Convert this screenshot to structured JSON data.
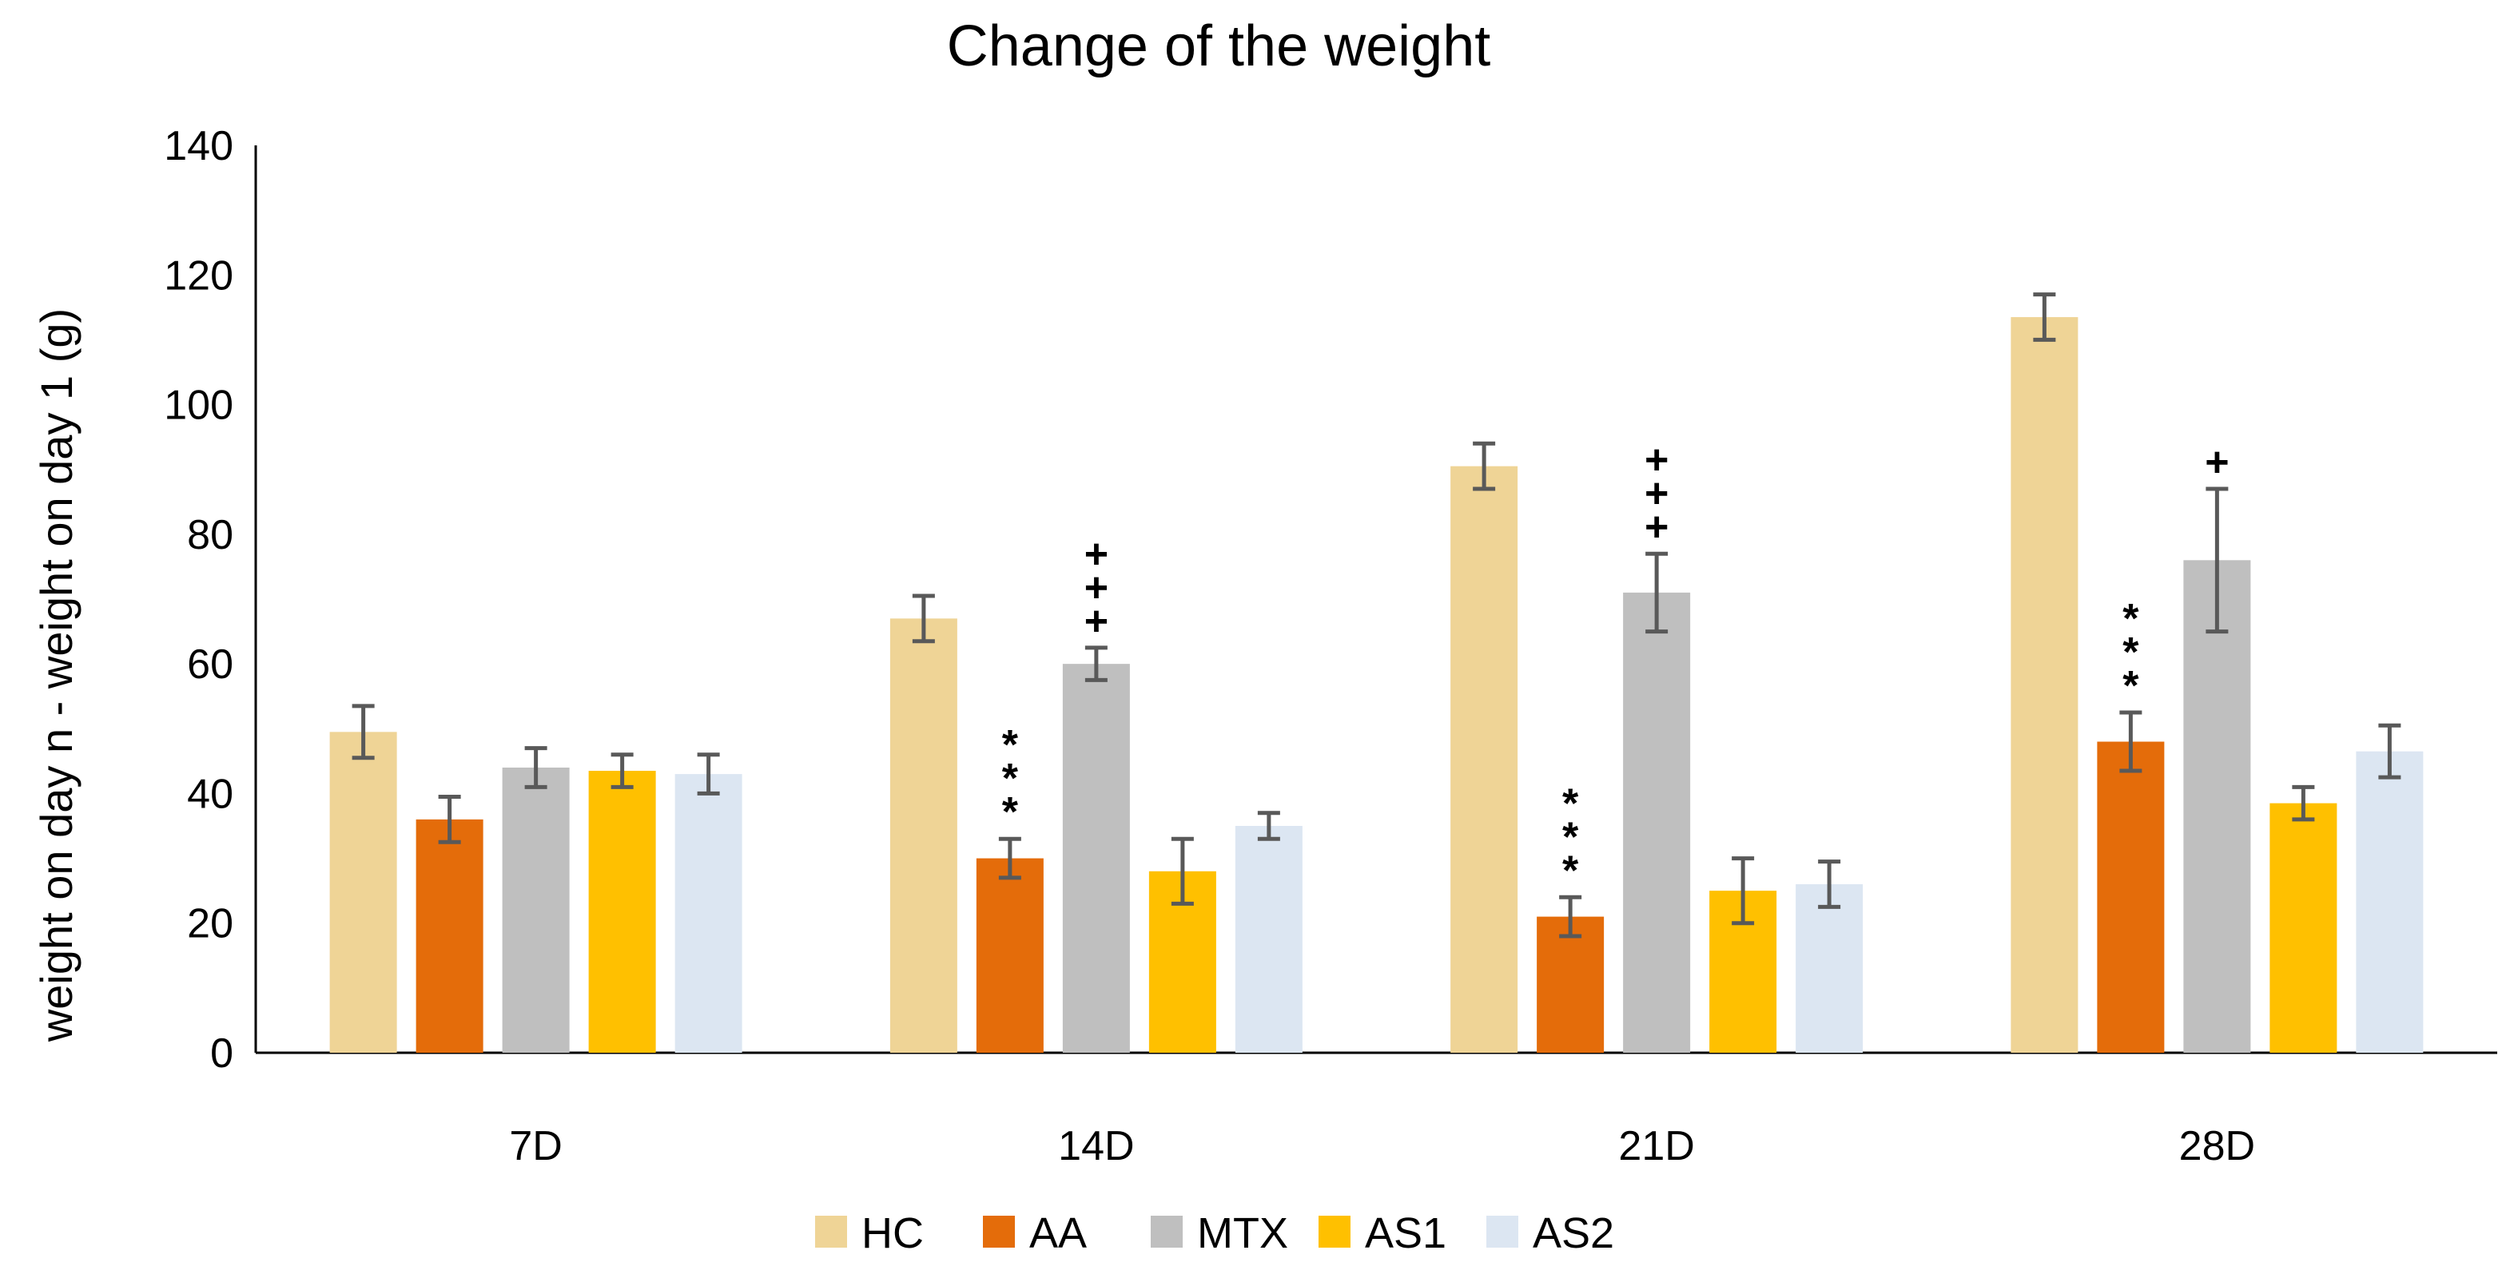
{
  "chart_data": {
    "type": "bar",
    "title": "Change of the weight",
    "xlabel": "",
    "ylabel": "weight on day n - weight on day 1  (g)",
    "ylim": [
      0,
      140
    ],
    "yticks": [
      0,
      20,
      40,
      60,
      80,
      100,
      120,
      140
    ],
    "grid": false,
    "legend_position": "bottom",
    "categories": [
      "7D",
      "14D",
      "21D",
      "28D"
    ],
    "series": [
      {
        "name": "HC",
        "color": "#EFD496",
        "values": [
          49.5,
          67,
          90.5,
          113.5
        ],
        "errors": [
          4,
          3.5,
          3.5,
          3.5
        ]
      },
      {
        "name": "AA",
        "color": "#E46C0A",
        "values": [
          36,
          30,
          21,
          48
        ],
        "errors": [
          3.5,
          3,
          3,
          4.5
        ]
      },
      {
        "name": "MTX",
        "color": "#BFBFBF",
        "values": [
          44,
          60,
          71,
          76
        ],
        "errors": [
          3,
          2.5,
          6,
          11
        ]
      },
      {
        "name": "AS1",
        "color": "#FFC000",
        "values": [
          43.5,
          28,
          25,
          38.5
        ],
        "errors": [
          2.5,
          5,
          5,
          2.5
        ]
      },
      {
        "name": "AS2",
        "color": "#DCE6F2",
        "values": [
          43,
          35,
          26,
          46.5
        ],
        "errors": [
          3,
          2,
          3.5,
          4
        ]
      }
    ],
    "annotations": [
      {
        "category": "14D",
        "series": "AA",
        "text": "***",
        "orientation": "vertical"
      },
      {
        "category": "14D",
        "series": "MTX",
        "text": "+++",
        "orientation": "vertical"
      },
      {
        "category": "21D",
        "series": "AA",
        "text": "***",
        "orientation": "vertical"
      },
      {
        "category": "21D",
        "series": "MTX",
        "text": "+++",
        "orientation": "vertical"
      },
      {
        "category": "28D",
        "series": "AA",
        "text": "***",
        "orientation": "vertical"
      },
      {
        "category": "28D",
        "series": "MTX",
        "text": "+",
        "orientation": "vertical"
      }
    ]
  }
}
